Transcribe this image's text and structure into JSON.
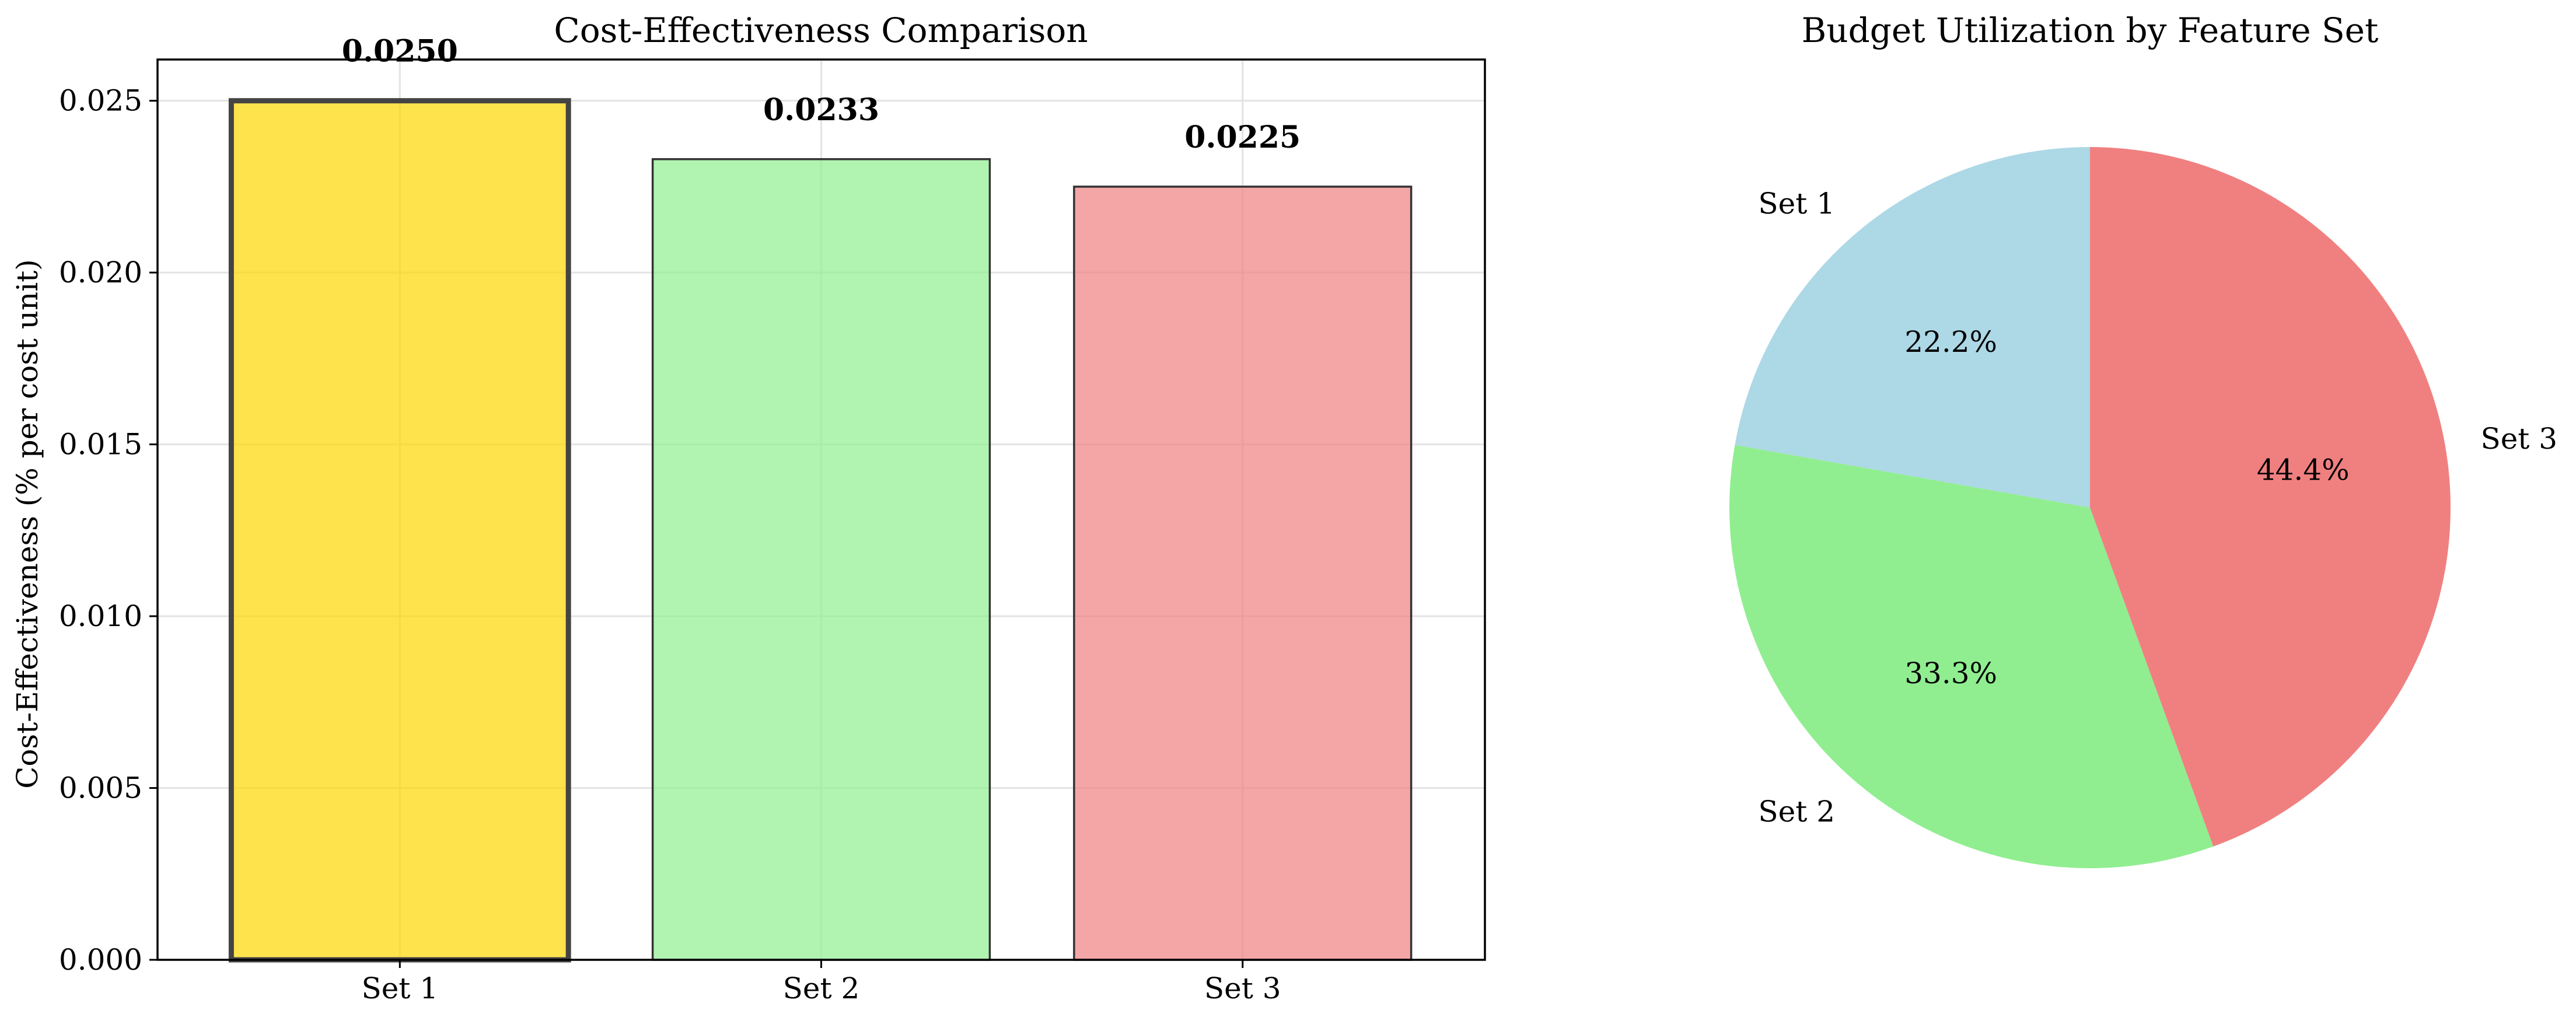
{
  "chart_data": [
    {
      "type": "bar",
      "title": "Cost-Effectiveness Comparison",
      "ylabel": "Cost-Effectiveness (% per cost unit)",
      "xlabel": "",
      "categories": [
        "Set 1",
        "Set 2",
        "Set 3"
      ],
      "values": [
        0.025,
        0.0233,
        0.0225
      ],
      "value_labels": [
        "0.0250",
        "0.0233",
        "0.0225"
      ],
      "colors": [
        "#FFD700",
        "#90EE90",
        "#F08080"
      ],
      "highlighted": "Set 1",
      "ylim": [
        0,
        0.0262
      ],
      "yticks": [
        0.0,
        0.005,
        0.01,
        0.015,
        0.02,
        0.025
      ],
      "ytick_labels": [
        "0.000",
        "0.005",
        "0.010",
        "0.015",
        "0.020",
        "0.025"
      ],
      "grid": true
    },
    {
      "type": "pie",
      "title": "Budget Utilization by Feature Set",
      "labels": [
        "Set 1",
        "Set 2",
        "Set 3"
      ],
      "values": [
        22.2,
        33.3,
        44.4
      ],
      "percent_labels": [
        "22.2%",
        "33.3%",
        "44.4%"
      ],
      "colors": [
        "#ADD8E6",
        "#90EE90",
        "#F08080"
      ],
      "start_angle_deg": 90,
      "direction": "counterclockwise"
    }
  ]
}
